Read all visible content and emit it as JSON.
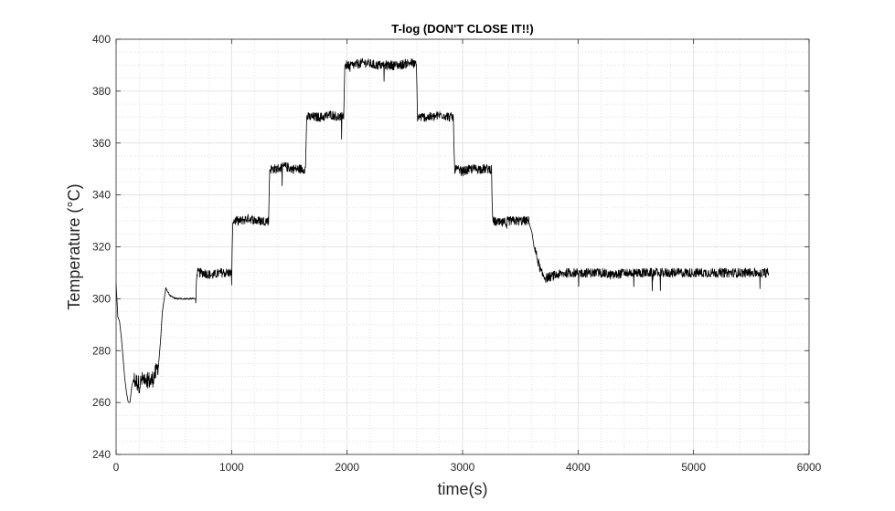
{
  "chart_data": {
    "type": "line",
    "title": "T-log (DON'T CLOSE IT!!)",
    "xlabel": "time(s)",
    "ylabel": "Temperature (°C)",
    "xlim": [
      0,
      6000
    ],
    "ylim": [
      240,
      400
    ],
    "x_ticks": [
      0,
      1000,
      2000,
      3000,
      4000,
      5000,
      6000
    ],
    "y_ticks": [
      240,
      260,
      280,
      300,
      320,
      340,
      360,
      380,
      400
    ],
    "x_tick_labels": [
      "0",
      "1000",
      "2000",
      "3000",
      "4000",
      "5000",
      "6000"
    ],
    "y_tick_labels": [
      "240",
      "260",
      "280",
      "300",
      "320",
      "340",
      "360",
      "380",
      "400"
    ],
    "grid": true,
    "minor_grid": true,
    "line_color": "#000000",
    "series": [
      {
        "x": [
          0,
          30,
          60,
          90,
          120,
          150,
          200,
          250,
          300,
          340,
          370,
          400,
          430,
          470,
          520,
          580,
          640,
          690,
          700,
          760,
          830,
          900,
          960,
          1000,
          1010,
          1080,
          1150,
          1220,
          1290,
          1320,
          1330,
          1390,
          1460,
          1530,
          1600,
          1640,
          1650,
          1720,
          1790,
          1860,
          1930,
          1970,
          1980,
          2050,
          2150,
          2250,
          2350,
          2450,
          2550,
          2600,
          2610,
          2680,
          2750,
          2820,
          2890,
          2920,
          2930,
          3000,
          3080,
          3160,
          3230,
          3250,
          3260,
          3330,
          3400,
          3470,
          3550,
          3580,
          3620,
          3650,
          3680,
          3720,
          3800,
          3900,
          4000,
          4100,
          4200,
          4300,
          4400,
          4500,
          4600,
          4700,
          4800,
          4900,
          5000,
          5100,
          5200,
          5300,
          5400,
          5500,
          5600,
          5650
        ],
        "y": [
          305,
          290,
          275,
          266,
          258,
          269,
          267,
          270,
          268,
          271,
          275,
          295,
          304,
          301,
          300,
          300,
          300,
          300,
          310,
          310,
          309,
          310,
          310,
          310,
          330,
          330,
          331,
          330,
          330,
          330,
          350,
          350,
          351,
          350,
          350,
          350,
          370,
          370,
          370,
          371,
          370,
          370,
          390,
          390,
          391,
          390,
          390,
          390,
          391,
          390,
          370,
          370,
          370,
          371,
          370,
          370,
          350,
          349,
          350,
          350,
          350,
          350,
          330,
          329,
          330,
          330,
          330,
          330,
          320,
          315,
          310,
          308,
          309,
          310,
          310,
          310,
          310,
          309,
          310,
          310,
          310,
          310,
          310,
          310,
          310,
          310,
          310,
          310,
          310,
          310,
          310,
          310
        ]
      }
    ]
  }
}
